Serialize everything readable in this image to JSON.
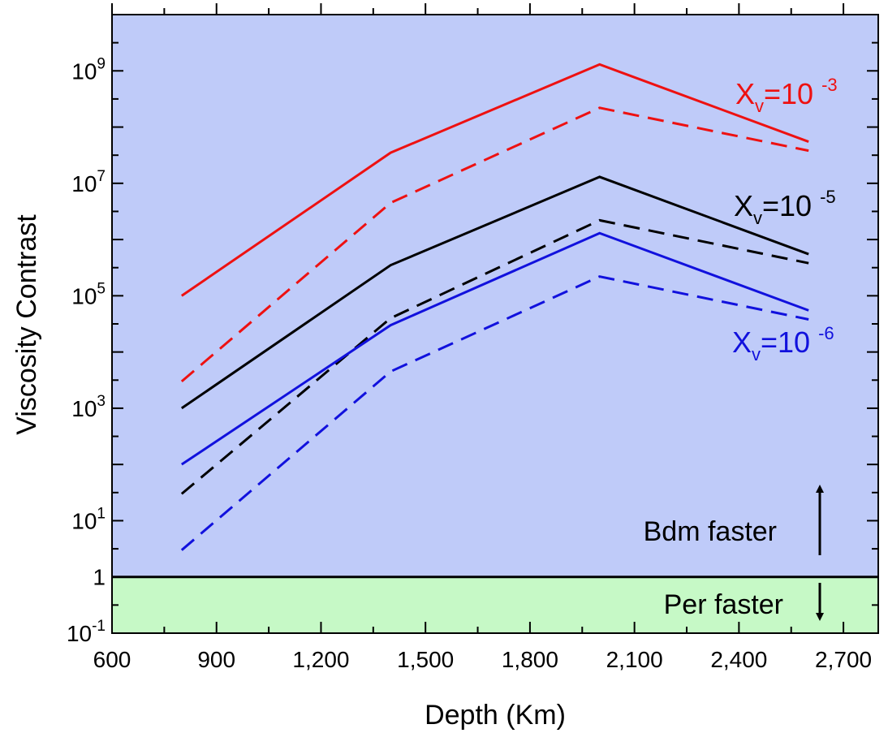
{
  "chart_data": {
    "type": "line",
    "xlabel": "Depth (Km)",
    "ylabel": "Viscosity Contrast",
    "x_scale": "linear",
    "y_scale": "log",
    "xlim": [
      600,
      2800
    ],
    "ylim_log10": [
      -1,
      10
    ],
    "x_ticks": [
      {
        "value": 600,
        "label": "600"
      },
      {
        "value": 900,
        "label": "900"
      },
      {
        "value": 1200,
        "label": "1,200"
      },
      {
        "value": 1500,
        "label": "1,500"
      },
      {
        "value": 1800,
        "label": "1,800"
      },
      {
        "value": 2100,
        "label": "2,100"
      },
      {
        "value": 2400,
        "label": "2,400"
      },
      {
        "value": 2700,
        "label": "2,700"
      }
    ],
    "y_ticks": [
      {
        "exp": -1,
        "base": "10",
        "sup": "-1"
      },
      {
        "exp": 0,
        "base": "1",
        "sup": ""
      },
      {
        "exp": 1,
        "base": "10",
        "sup": "1"
      },
      {
        "exp": 3,
        "base": "10",
        "sup": "3"
      },
      {
        "exp": 5,
        "base": "10",
        "sup": "5"
      },
      {
        "exp": 7,
        "base": "10",
        "sup": "7"
      },
      {
        "exp": 9,
        "base": "10",
        "sup": "9"
      }
    ],
    "x": [
      800,
      1400,
      2000,
      2600
    ],
    "series": [
      {
        "color": "#ee1111",
        "style": "solid",
        "values": [
          100000,
          35000000,
          1300000000,
          55000000
        ]
      },
      {
        "color": "#ee1111",
        "style": "dashed",
        "values": [
          3000,
          4500000,
          220000000,
          38000000
        ]
      },
      {
        "color": "#000000",
        "style": "solid",
        "values": [
          1000,
          350000,
          13000000,
          550000
        ]
      },
      {
        "color": "#000000",
        "style": "dashed",
        "values": [
          30,
          40000,
          2200000,
          380000
        ]
      },
      {
        "color": "#1111dd",
        "style": "solid",
        "values": [
          100,
          30000,
          1300000,
          55000
        ]
      },
      {
        "color": "#1111dd",
        "style": "dashed",
        "values": [
          3,
          4500,
          220000,
          38000
        ]
      }
    ],
    "bands": [
      {
        "from_exp": 0,
        "to_exp": 10,
        "color": "#bfcbf9"
      },
      {
        "from_exp": -1,
        "to_exp": 0,
        "color": "#c6f9c6"
      }
    ],
    "reference_line": {
      "value": 1
    },
    "annotations": {
      "xv3": {
        "main": "X",
        "sub": "v",
        "eq": "=10",
        "sup": "-3",
        "color": "#ee1111"
      },
      "xv5": {
        "main": "X",
        "sub": "v",
        "eq": "=10",
        "sup": "-5",
        "color": "#000000"
      },
      "xv6": {
        "main": "X",
        "sub": "v",
        "eq": "=10",
        "sup": "-6",
        "color": "#1111dd"
      },
      "bdm": {
        "text": "Bdm faster",
        "direction": "up"
      },
      "per": {
        "text": "Per faster",
        "direction": "down"
      }
    }
  }
}
